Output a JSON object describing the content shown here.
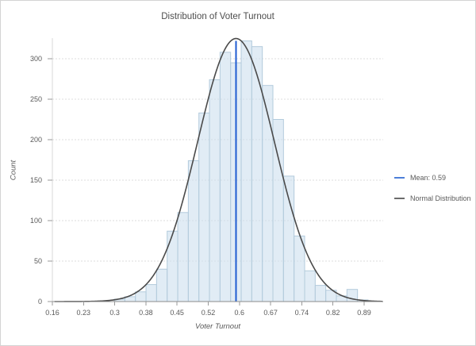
{
  "title": "Distribution of Voter Turnout",
  "chart_data": {
    "type": "bar",
    "subtype": "histogram-with-normal-fit",
    "title": "Distribution of Voter Turnout",
    "xlabel": "Voter Turnout",
    "ylabel": "Count",
    "xlim": [
      0.16,
      0.935
    ],
    "ylim": [
      0,
      338
    ],
    "grid": "horizontal",
    "legend_position": "right-middle",
    "x_tick_labels": [
      "0.16",
      "0.23",
      "0.3",
      "0.38",
      "0.45",
      "0.52",
      "0.6",
      "0.67",
      "0.74",
      "0.82",
      "0.89"
    ],
    "x_tick_values": [
      0.16,
      0.233,
      0.306,
      0.379,
      0.452,
      0.525,
      0.598,
      0.671,
      0.744,
      0.817,
      0.89
    ],
    "y_tick_labels": [
      "0",
      "50",
      "100",
      "150",
      "200",
      "250",
      "300"
    ],
    "y_tick_values": [
      0,
      50,
      100,
      150,
      200,
      250,
      300
    ],
    "histogram": {
      "bin_start": 0.305,
      "bin_width": 0.02476,
      "counts": [
        3,
        6,
        12,
        21,
        40,
        87,
        110,
        174,
        233,
        274,
        308,
        295,
        322,
        315,
        267,
        225,
        155,
        81,
        38,
        20,
        14,
        7,
        15,
        2
      ]
    },
    "normal_curve": {
      "mean": 0.59,
      "sd": 0.09,
      "peak_count": 325
    },
    "mean_line": {
      "x": 0.59,
      "top_count": 322,
      "label": "Mean: 0.59"
    },
    "legend": [
      {
        "label": "Mean: 0.59",
        "swatch_color": "#4d7fd9"
      },
      {
        "label": "Normal Distribution",
        "swatch_color": "#6b6b6b"
      }
    ],
    "colors": {
      "bar_fill": "rgba(205,224,238,0.6)",
      "bar_stroke": "#b3cbdc",
      "curve": "#4a4a4a",
      "mean_line": "#1f5cd1",
      "gridline": "#dcdcdc",
      "x_axis": "#8c8c8c",
      "y_axis": "#d9d9d9",
      "tick": "#9a9a9a",
      "tick_label": "#5a5a5a"
    }
  }
}
